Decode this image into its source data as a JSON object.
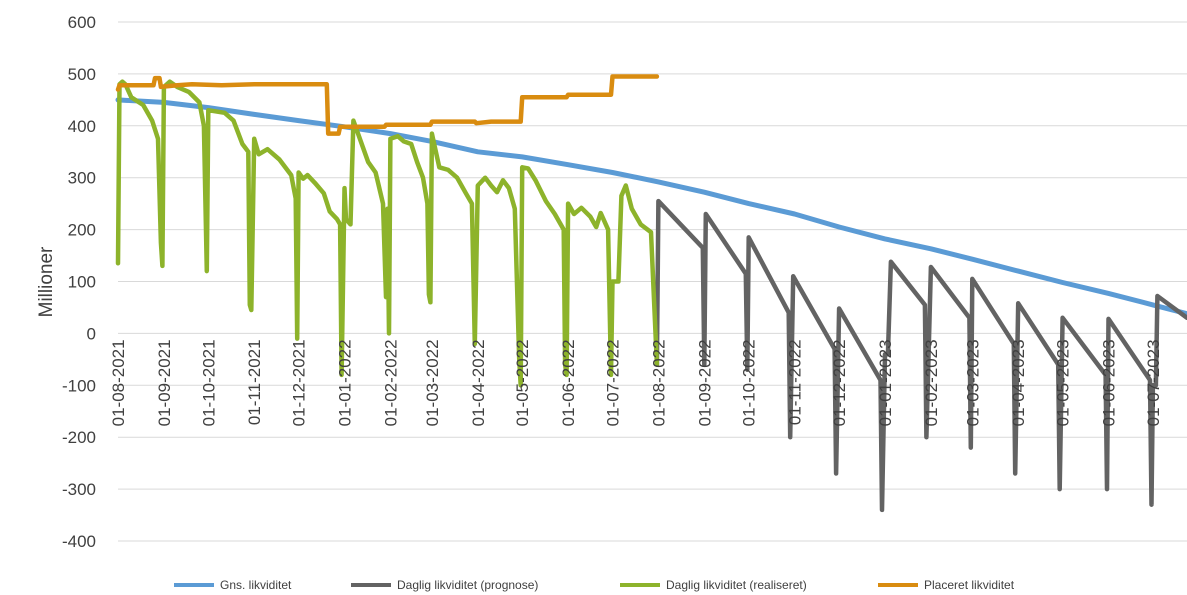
{
  "chart_data": {
    "type": "line",
    "title": "",
    "ylabel": "Millioner",
    "ylim": [
      -400,
      600
    ],
    "yticks": [
      -400,
      -300,
      -200,
      -100,
      0,
      100,
      200,
      300,
      400,
      500,
      600
    ],
    "grid": true,
    "legend_position": "bottom",
    "x_tick_labels": [
      "01-08-2021",
      "01-09-2021",
      "01-10-2021",
      "01-11-2021",
      "01-12-2021",
      "01-01-2022",
      "01-02-2022",
      "01-03-2022",
      "01-04-2022",
      "01-05-2022",
      "01-06-2022",
      "01-07-2022",
      "01-08-2022",
      "01-09-2022",
      "01-10-2022",
      "01-11-2022",
      "01-12-2022",
      "01-01-2023",
      "01-02-2023",
      "01-03-2023",
      "01-04-2023",
      "01-05-2023",
      "01-06-2023",
      "01-07-2023"
    ],
    "x_range": [
      "2021-08-01",
      "2023-07-24"
    ],
    "series": [
      {
        "name": "Gns. likviditet",
        "color": "#5B9BD5",
        "points": [
          [
            "2021-08-01",
            450
          ],
          [
            "2021-09-01",
            445
          ],
          [
            "2021-10-01",
            435
          ],
          [
            "2021-11-01",
            422
          ],
          [
            "2021-12-01",
            410
          ],
          [
            "2022-01-01",
            398
          ],
          [
            "2022-02-01",
            385
          ],
          [
            "2022-03-01",
            370
          ],
          [
            "2022-04-01",
            350
          ],
          [
            "2022-05-01",
            340
          ],
          [
            "2022-06-01",
            325
          ],
          [
            "2022-07-01",
            310
          ],
          [
            "2022-08-01",
            292
          ],
          [
            "2022-09-01",
            272
          ],
          [
            "2022-10-01",
            250
          ],
          [
            "2022-11-01",
            230
          ],
          [
            "2022-12-01",
            205
          ],
          [
            "2023-01-01",
            182
          ],
          [
            "2023-02-01",
            163
          ],
          [
            "2023-03-01",
            143
          ],
          [
            "2023-04-01",
            120
          ],
          [
            "2023-05-01",
            98
          ],
          [
            "2023-06-01",
            77
          ],
          [
            "2023-07-01",
            55
          ],
          [
            "2023-07-24",
            38
          ]
        ]
      },
      {
        "name": "Daglig likviditet (prognose)",
        "color": "#636363",
        "points": [
          [
            "2022-07-31",
            -60
          ],
          [
            "2022-08-01",
            255
          ],
          [
            "2022-08-31",
            165
          ],
          [
            "2022-09-01",
            -60
          ],
          [
            "2022-09-02",
            230
          ],
          [
            "2022-09-29",
            115
          ],
          [
            "2022-09-30",
            -70
          ],
          [
            "2022-10-01",
            185
          ],
          [
            "2022-10-28",
            40
          ],
          [
            "2022-10-29",
            -200
          ],
          [
            "2022-10-31",
            110
          ],
          [
            "2022-11-28",
            -30
          ],
          [
            "2022-11-29",
            -270
          ],
          [
            "2022-12-01",
            48
          ],
          [
            "2022-12-29",
            -90
          ],
          [
            "2022-12-30",
            -340
          ],
          [
            "2023-01-01",
            -40
          ],
          [
            "2023-01-03",
            -40
          ],
          [
            "2023-01-05",
            138
          ],
          [
            "2023-01-28",
            55
          ],
          [
            "2023-01-29",
            -200
          ],
          [
            "2023-02-01",
            128
          ],
          [
            "2023-02-27",
            30
          ],
          [
            "2023-02-28",
            -220
          ],
          [
            "2023-03-01",
            105
          ],
          [
            "2023-03-29",
            -20
          ],
          [
            "2023-03-30",
            -270
          ],
          [
            "2023-04-01",
            58
          ],
          [
            "2023-04-28",
            -60
          ],
          [
            "2023-04-29",
            -300
          ],
          [
            "2023-05-01",
            30
          ],
          [
            "2023-05-30",
            -80
          ],
          [
            "2023-05-31",
            -300
          ],
          [
            "2023-06-01",
            28
          ],
          [
            "2023-06-29",
            -90
          ],
          [
            "2023-06-30",
            -330
          ],
          [
            "2023-07-01",
            -100
          ],
          [
            "2023-07-03",
            -100
          ],
          [
            "2023-07-04",
            72
          ],
          [
            "2023-07-24",
            30
          ]
        ]
      },
      {
        "name": "Daglig likviditet (realiseret)",
        "color": "#8DB32B",
        "points": [
          [
            "2021-08-01",
            135
          ],
          [
            "2021-08-02",
            480
          ],
          [
            "2021-08-04",
            485
          ],
          [
            "2021-08-06",
            480
          ],
          [
            "2021-08-10",
            455
          ],
          [
            "2021-08-18",
            440
          ],
          [
            "2021-08-24",
            410
          ],
          [
            "2021-08-28",
            375
          ],
          [
            "2021-08-30",
            175
          ],
          [
            "2021-08-31",
            130
          ],
          [
            "2021-09-01",
            475
          ],
          [
            "2021-09-05",
            485
          ],
          [
            "2021-09-10",
            475
          ],
          [
            "2021-09-18",
            465
          ],
          [
            "2021-09-25",
            445
          ],
          [
            "2021-09-28",
            400
          ],
          [
            "2021-09-30",
            120
          ],
          [
            "2021-10-01",
            430
          ],
          [
            "2021-10-12",
            425
          ],
          [
            "2021-10-18",
            410
          ],
          [
            "2021-10-24",
            365
          ],
          [
            "2021-10-28",
            350
          ],
          [
            "2021-10-29",
            55
          ],
          [
            "2021-10-30",
            45
          ],
          [
            "2021-11-01",
            375
          ],
          [
            "2021-11-04",
            345
          ],
          [
            "2021-11-10",
            355
          ],
          [
            "2021-11-18",
            335
          ],
          [
            "2021-11-26",
            305
          ],
          [
            "2021-11-29",
            260
          ],
          [
            "2021-11-30",
            -10
          ],
          [
            "2021-12-01",
            310
          ],
          [
            "2021-12-04",
            298
          ],
          [
            "2021-12-07",
            305
          ],
          [
            "2021-12-12",
            290
          ],
          [
            "2021-12-18",
            270
          ],
          [
            "2021-12-22",
            235
          ],
          [
            "2021-12-27",
            220
          ],
          [
            "2021-12-29",
            210
          ],
          [
            "2021-12-30",
            -80
          ],
          [
            "2022-01-01",
            280
          ],
          [
            "2022-01-02",
            220
          ],
          [
            "2022-01-05",
            210
          ],
          [
            "2022-01-07",
            410
          ],
          [
            "2022-01-12",
            370
          ],
          [
            "2022-01-17",
            330
          ],
          [
            "2022-01-22",
            310
          ],
          [
            "2022-01-27",
            250
          ],
          [
            "2022-01-29",
            70
          ],
          [
            "2022-01-30",
            240
          ],
          [
            "2022-01-31",
            0
          ],
          [
            "2022-02-01",
            375
          ],
          [
            "2022-02-06",
            380
          ],
          [
            "2022-02-10",
            370
          ],
          [
            "2022-02-15",
            365
          ],
          [
            "2022-02-19",
            330
          ],
          [
            "2022-02-23",
            300
          ],
          [
            "2022-02-26",
            250
          ],
          [
            "2022-02-27",
            75
          ],
          [
            "2022-02-28",
            60
          ],
          [
            "2022-03-01",
            385
          ],
          [
            "2022-03-06",
            320
          ],
          [
            "2022-03-12",
            315
          ],
          [
            "2022-03-18",
            300
          ],
          [
            "2022-03-24",
            270
          ],
          [
            "2022-03-28",
            250
          ],
          [
            "2022-03-30",
            -20
          ],
          [
            "2022-04-01",
            285
          ],
          [
            "2022-04-06",
            300
          ],
          [
            "2022-04-10",
            285
          ],
          [
            "2022-04-14",
            272
          ],
          [
            "2022-04-18",
            295
          ],
          [
            "2022-04-22",
            280
          ],
          [
            "2022-04-26",
            240
          ],
          [
            "2022-04-29",
            -50
          ],
          [
            "2022-04-30",
            -100
          ],
          [
            "2022-05-01",
            320
          ],
          [
            "2022-05-05",
            318
          ],
          [
            "2022-05-10",
            295
          ],
          [
            "2022-05-17",
            255
          ],
          [
            "2022-05-23",
            230
          ],
          [
            "2022-05-29",
            200
          ],
          [
            "2022-05-30",
            -60
          ],
          [
            "2022-05-31",
            -80
          ],
          [
            "2022-06-01",
            250
          ],
          [
            "2022-06-05",
            230
          ],
          [
            "2022-06-10",
            242
          ],
          [
            "2022-06-16",
            225
          ],
          [
            "2022-06-20",
            205
          ],
          [
            "2022-06-23",
            232
          ],
          [
            "2022-06-28",
            200
          ],
          [
            "2022-06-30",
            -80
          ],
          [
            "2022-07-01",
            100
          ],
          [
            "2022-07-05",
            100
          ],
          [
            "2022-07-07",
            265
          ],
          [
            "2022-07-10",
            285
          ],
          [
            "2022-07-14",
            240
          ],
          [
            "2022-07-20",
            210
          ],
          [
            "2022-07-27",
            195
          ],
          [
            "2022-07-31",
            -60
          ]
        ]
      },
      {
        "name": "Placeret likviditet",
        "color": "#D98C10",
        "points": [
          [
            "2021-08-01",
            470
          ],
          [
            "2021-08-02",
            478
          ],
          [
            "2021-08-25",
            478
          ],
          [
            "2021-08-26",
            492
          ],
          [
            "2021-08-29",
            492
          ],
          [
            "2021-08-30",
            475
          ],
          [
            "2021-09-10",
            478
          ],
          [
            "2021-09-20",
            480
          ],
          [
            "2021-10-10",
            478
          ],
          [
            "2021-11-01",
            480
          ],
          [
            "2021-12-20",
            480
          ],
          [
            "2021-12-21",
            385
          ],
          [
            "2021-12-28",
            385
          ],
          [
            "2021-12-29",
            398
          ],
          [
            "2022-01-28",
            398
          ],
          [
            "2022-01-29",
            402
          ],
          [
            "2022-02-28",
            402
          ],
          [
            "2022-03-01",
            408
          ],
          [
            "2022-03-30",
            408
          ],
          [
            "2022-03-31",
            405
          ],
          [
            "2022-04-10",
            408
          ],
          [
            "2022-04-30",
            408
          ],
          [
            "2022-05-01",
            455
          ],
          [
            "2022-05-31",
            455
          ],
          [
            "2022-06-01",
            460
          ],
          [
            "2022-06-30",
            460
          ],
          [
            "2022-07-01",
            495
          ],
          [
            "2022-07-31",
            495
          ]
        ]
      }
    ]
  }
}
